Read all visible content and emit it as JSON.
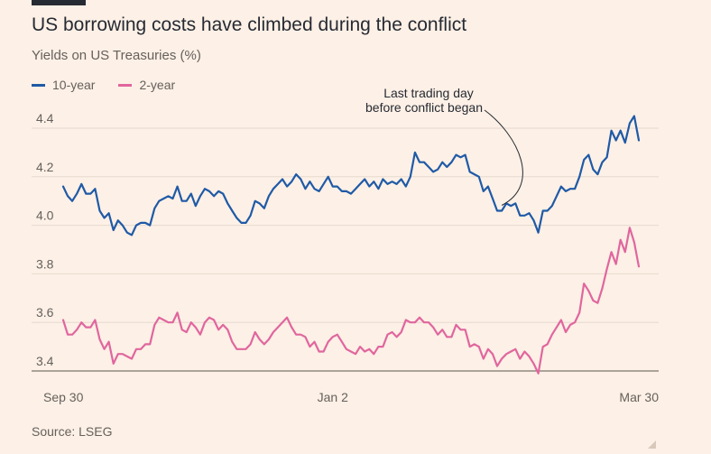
{
  "header": {
    "title": "US borrowing costs have climbed during the conflict",
    "subtitle": "Yields on US Treasuries (%)"
  },
  "legend": {
    "items": [
      {
        "label": "10-year",
        "color": "#1f5aa6"
      },
      {
        "label": "2-year",
        "color": "#e0669e"
      }
    ]
  },
  "footer": {
    "source": "Source: LSEG"
  },
  "chart_data": {
    "type": "line",
    "title": "US borrowing costs have climbed during the conflict",
    "subtitle": "Yields on US Treasuries (%)",
    "xlabel": "",
    "ylabel": "Yields on US Treasuries (%)",
    "ylim": [
      3.4,
      4.4
    ],
    "yticks": [
      3.4,
      3.6,
      3.8,
      4.0,
      4.2,
      4.4
    ],
    "ytick_labels": [
      "3.4",
      "3.6",
      "3.8",
      "4.0",
      "4.2",
      "4.4"
    ],
    "xticks": [
      0,
      59,
      124
    ],
    "xtick_labels": [
      "Sep 30",
      "Jan 2",
      "Mar 30"
    ],
    "grid": "horizontal",
    "legend_position": "top-left",
    "annotation": {
      "lines": [
        "Last trading day",
        "before conflict began"
      ],
      "x": 96
    },
    "series": [
      {
        "name": "10-year",
        "color": "#1f5aa6",
        "values": [
          4.16,
          4.12,
          4.1,
          4.13,
          4.17,
          4.13,
          4.13,
          4.15,
          4.06,
          4.03,
          4.05,
          3.98,
          4.02,
          4.0,
          3.97,
          3.96,
          4.0,
          4.01,
          4.01,
          4.0,
          4.07,
          4.1,
          4.11,
          4.12,
          4.11,
          4.16,
          4.1,
          4.1,
          4.13,
          4.08,
          4.12,
          4.15,
          4.14,
          4.12,
          4.14,
          4.13,
          4.09,
          4.06,
          4.03,
          4.01,
          4.01,
          4.04,
          4.1,
          4.09,
          4.07,
          4.12,
          4.15,
          4.17,
          4.19,
          4.16,
          4.18,
          4.21,
          4.19,
          4.15,
          4.18,
          4.15,
          4.14,
          4.17,
          4.2,
          4.16,
          4.16,
          4.14,
          4.14,
          4.13,
          4.15,
          4.17,
          4.19,
          4.16,
          4.18,
          4.15,
          4.19,
          4.17,
          4.18,
          4.17,
          4.19,
          4.16,
          4.2,
          4.3,
          4.26,
          4.26,
          4.24,
          4.22,
          4.23,
          4.26,
          4.24,
          4.26,
          4.29,
          4.28,
          4.29,
          4.22,
          4.21,
          4.2,
          4.14,
          4.16,
          4.11,
          4.06,
          4.06,
          4.09,
          4.08,
          4.09,
          4.04,
          4.04,
          4.05,
          4.02,
          3.97,
          4.06,
          4.06,
          4.08,
          4.12,
          4.16,
          4.14,
          4.15,
          4.15,
          4.2,
          4.27,
          4.29,
          4.23,
          4.21,
          4.26,
          4.28,
          4.39,
          4.35,
          4.39,
          4.34,
          4.42,
          4.45,
          4.35
        ]
      },
      {
        "name": "2-year",
        "color": "#e0669e",
        "values": [
          3.61,
          3.55,
          3.55,
          3.57,
          3.6,
          3.58,
          3.58,
          3.61,
          3.53,
          3.49,
          3.52,
          3.43,
          3.47,
          3.47,
          3.46,
          3.45,
          3.49,
          3.49,
          3.51,
          3.51,
          3.59,
          3.62,
          3.61,
          3.6,
          3.6,
          3.64,
          3.57,
          3.56,
          3.6,
          3.58,
          3.55,
          3.6,
          3.62,
          3.61,
          3.57,
          3.59,
          3.57,
          3.52,
          3.49,
          3.49,
          3.49,
          3.51,
          3.56,
          3.53,
          3.51,
          3.53,
          3.56,
          3.58,
          3.6,
          3.62,
          3.58,
          3.55,
          3.55,
          3.54,
          3.5,
          3.52,
          3.48,
          3.48,
          3.52,
          3.54,
          3.55,
          3.52,
          3.49,
          3.48,
          3.47,
          3.5,
          3.48,
          3.49,
          3.47,
          3.5,
          3.5,
          3.55,
          3.56,
          3.54,
          3.56,
          3.61,
          3.6,
          3.6,
          3.62,
          3.6,
          3.6,
          3.58,
          3.55,
          3.57,
          3.54,
          3.54,
          3.59,
          3.57,
          3.57,
          3.5,
          3.51,
          3.5,
          3.45,
          3.49,
          3.47,
          3.42,
          3.45,
          3.47,
          3.48,
          3.49,
          3.45,
          3.48,
          3.46,
          3.43,
          3.39,
          3.5,
          3.51,
          3.55,
          3.58,
          3.61,
          3.56,
          3.59,
          3.6,
          3.64,
          3.76,
          3.73,
          3.69,
          3.68,
          3.74,
          3.82,
          3.89,
          3.84,
          3.94,
          3.89,
          3.99,
          3.93,
          3.83
        ]
      }
    ]
  }
}
